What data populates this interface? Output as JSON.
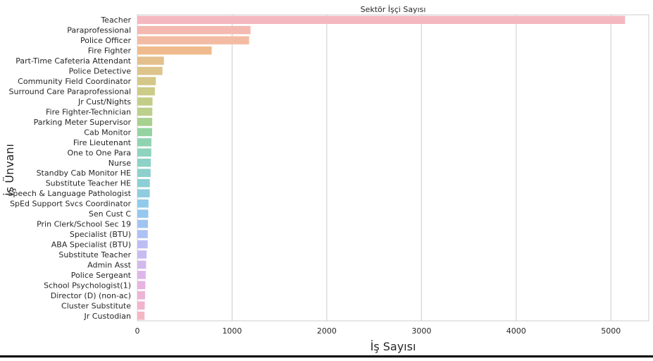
{
  "chart_data": {
    "type": "bar",
    "orientation": "horizontal",
    "title": "Sektör İşçi Sayısı",
    "xlabel": "İş Sayısı",
    "ylabel": "İş Ünvanı",
    "xlim": [
      0,
      5400
    ],
    "xticks": [
      0,
      1000,
      2000,
      3000,
      4000,
      5000
    ],
    "grid": "vertical",
    "categories": [
      "Teacher",
      "Paraprofessional",
      "Police Officer",
      "Fire Fighter",
      "Part-Time Cafeteria Attendant",
      "Police Detective",
      "Community Field Coordinator",
      "Surround Care Paraprofessional",
      "Jr Cust/Nights",
      "Fire Fighter-Technician",
      "Parking Meter Supervisor",
      "Cab Monitor",
      "Fire Lieutenant",
      "One to One Para",
      "Nurse",
      "Standby Cab Monitor HE",
      "Substitute Teacher HE",
      "Speech & Language Pathologist",
      "SpEd Support Svcs Coordinator",
      "Sen Cust C",
      "Prin Clerk/School Sec 19",
      "Specialist (BTU)",
      "ABA Specialist (BTU)",
      "Substitute Teacher",
      "Admin Asst",
      "Police Sergeant",
      "School Psychologist(1)",
      "Director (D) (non-ac)",
      "Cluster Substitute",
      "Jr Custodian"
    ],
    "values": [
      5150,
      1195,
      1180,
      785,
      280,
      265,
      195,
      185,
      160,
      158,
      157,
      156,
      148,
      147,
      142,
      140,
      132,
      131,
      118,
      115,
      112,
      110,
      109,
      98,
      92,
      88,
      84,
      81,
      78,
      76
    ],
    "colors": [
      "#f4b8c1",
      "#f4b9b1",
      "#f4bba4",
      "#f0bb8c",
      "#e3c08d",
      "#dcc48b",
      "#d4c787",
      "#cccb87",
      "#c4cd88",
      "#bccf8b",
      "#a8d18f",
      "#95d3a0",
      "#90d3b2",
      "#8ed3bd",
      "#8dd2c6",
      "#8dd0ce",
      "#8dcfd6",
      "#8ecde0",
      "#91caea",
      "#96c7ef",
      "#a0c4f2",
      "#aec1f4",
      "#bcbef3",
      "#c8bbf1",
      "#d3b8ee",
      "#ddb5ea",
      "#e6b3e2",
      "#ecb3d7",
      "#f1b4cc",
      "#f4b6c3"
    ]
  }
}
